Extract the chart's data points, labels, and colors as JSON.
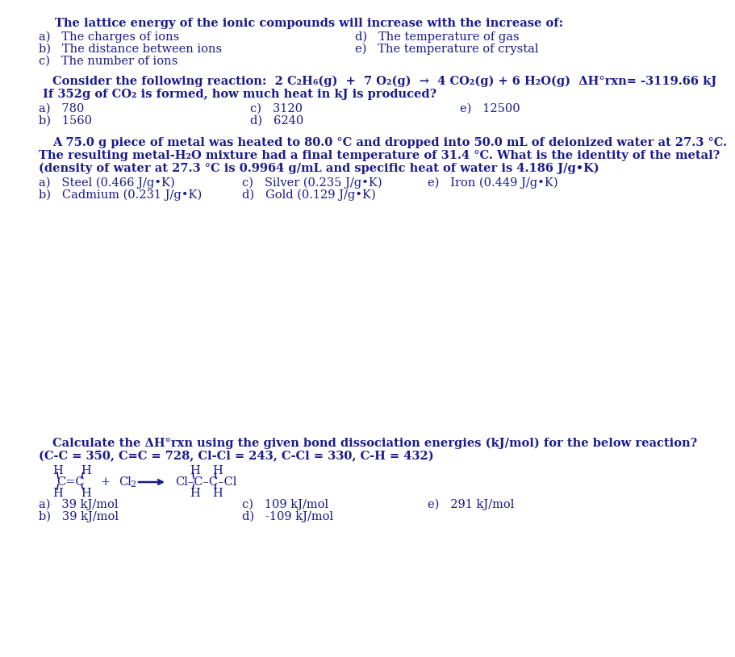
{
  "bg_color": "#ffffff",
  "q1_title": "The lattice energy of the ionic compounds will increase with the increase of:",
  "q1_left": [
    "a)   The charges of ions",
    "b)   The distance between ions",
    "c)   The number of ions"
  ],
  "q1_right": [
    "d)   The temperature of gas",
    "e)   The temperature of crystal"
  ],
  "q2_line1": "Consider the following reaction:  2 C₂H₆(g)  +  7 O₂(g)  →  4 CO₂(g) + 6 H₂O(g)  ΔH°rxn= -3119.66 kJ",
  "q2_line2": " If 352g of CO₂ is formed, how much heat in kJ is produced?",
  "q2_left": [
    "a)   780",
    "b)   1560"
  ],
  "q2_mid": [
    "c)   3120",
    "d)   6240"
  ],
  "q2_right": [
    "e)   12500"
  ],
  "q3_line1": "A 75.0 g piece of metal was heated to 80.0 °C and dropped into 50.0 mL of deionized water at 27.3 °C.",
  "q3_line2": "The resulting metal-H₂O mixture had a final temperature of 31.4 °C. What is the identity of the metal?",
  "q3_line3": "(density of water at 27.3 °C is 0.9964 g/mL and specific heat of water is 4.186 J/g•K)",
  "q3_left": [
    "a)   Steel (0.466 J/g•K)",
    "b)   Cadmium (0.231 J/g•K)"
  ],
  "q3_mid": [
    "c)   Silver (0.235 J/g•K)",
    "d)   Gold (0.129 J/g•K)"
  ],
  "q3_right": [
    "e)   Iron (0.449 J/g•K)"
  ],
  "q4_line1": "Calculate the ΔH°rxn using the given bond dissociation energies (kJ/mol) for the below reaction?",
  "q4_line2": "(C-C = 350, C=C = 728, Cl-Cl = 243, C-Cl = 330, C-H = 432)",
  "q4_left": [
    "a)   39 kJ/mol",
    "b)   39 kJ/mol"
  ],
  "q4_mid": [
    "c)   109 kJ/mol",
    "d)   -109 kJ/mol"
  ],
  "q4_right": [
    "e)   291 kJ/mol"
  ],
  "fs": 10.5,
  "ff": "DejaVu Serif"
}
